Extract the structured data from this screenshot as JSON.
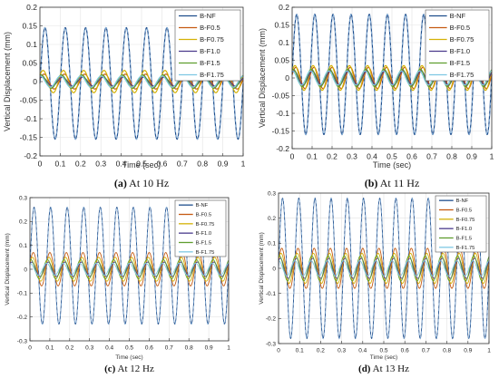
{
  "colors": {
    "B-NF": "#1f4e8c",
    "B-F0.5": "#c55a11",
    "B-F0.75": "#d4b106",
    "B-F1.0": "#4a3a8c",
    "B-F1.5": "#5f9e2f",
    "B-F1.75": "#7ec8e3"
  },
  "chart_data": [
    {
      "type": "line",
      "caption_label": "(a)",
      "caption_text": " At 10 Hz",
      "xlabel": "Time (sec)",
      "ylabel": "Vertical Displacement (mm)",
      "xlim": [
        0,
        1
      ],
      "ylim": [
        -0.2,
        0.2
      ],
      "x_ticks": [
        "0",
        "0.1",
        "0.2",
        "0.3",
        "0.4",
        "0.5",
        "0.6",
        "0.7",
        "0.8",
        "0.9",
        "1"
      ],
      "y_ticks": [
        "-0.2",
        "-0.15",
        "-0.1",
        "-0.05",
        "0",
        "0.05",
        "0.1",
        "0.15",
        "0.2"
      ],
      "grid": true,
      "legend": "top-right",
      "frequency_hz": 10,
      "series": [
        {
          "name": "B-NF",
          "amplitude": 0.15,
          "offset": -0.005
        },
        {
          "name": "B-F0.5",
          "amplitude": 0.02,
          "offset": 0.0
        },
        {
          "name": "B-F0.75",
          "amplitude": 0.03,
          "offset": 0.0
        },
        {
          "name": "B-F1.0",
          "amplitude": 0.012,
          "offset": 0.0
        },
        {
          "name": "B-F1.5",
          "amplitude": 0.018,
          "offset": 0.0
        },
        {
          "name": "B-F1.75",
          "amplitude": 0.015,
          "offset": 0.0
        }
      ]
    },
    {
      "type": "line",
      "caption_label": "(b)",
      "caption_text": " At 11 Hz",
      "xlabel": "Time (sec)",
      "ylabel": "Vertical Displacement (mm)",
      "xlim": [
        0,
        1
      ],
      "ylim": [
        -0.2,
        0.2
      ],
      "x_ticks": [
        "0",
        "0.1",
        "0.2",
        "0.3",
        "0.4",
        "0.5",
        "0.6",
        "0.7",
        "0.8",
        "0.9",
        "1"
      ],
      "y_ticks": [
        "-0.2",
        "-0.15",
        "-0.1",
        "-0.05",
        "0",
        "0.05",
        "0.1",
        "0.15",
        "0.2"
      ],
      "grid": true,
      "legend": "top-right",
      "frequency_hz": 11,
      "series": [
        {
          "name": "B-NF",
          "amplitude": 0.17,
          "offset": 0.01
        },
        {
          "name": "B-F0.5",
          "amplitude": 0.03,
          "offset": 0.0
        },
        {
          "name": "B-F0.75",
          "amplitude": 0.035,
          "offset": 0.0
        },
        {
          "name": "B-F1.0",
          "amplitude": 0.02,
          "offset": 0.0
        },
        {
          "name": "B-F1.5",
          "amplitude": 0.025,
          "offset": 0.0
        },
        {
          "name": "B-F1.75",
          "amplitude": 0.02,
          "offset": 0.0
        }
      ]
    },
    {
      "type": "line",
      "caption_label": "(c)",
      "caption_text": " At 12 Hz",
      "xlabel": "Time (sec)",
      "ylabel": "Vertical Displacement (mm)",
      "xlim": [
        0,
        1
      ],
      "ylim": [
        -0.3,
        0.3
      ],
      "x_ticks": [
        "0",
        "0.1",
        "0.2",
        "0.3",
        "0.4",
        "0.5",
        "0.6",
        "0.7",
        "0.8",
        "0.9",
        "1"
      ],
      "y_ticks": [
        "-0.3",
        "-0.2",
        "-0.1",
        "0",
        "0.1",
        "0.2",
        "0.3"
      ],
      "grid": true,
      "legend": "top-right",
      "frequency_hz": 12,
      "series": [
        {
          "name": "B-NF",
          "amplitude": 0.245,
          "offset": 0.015
        },
        {
          "name": "B-F0.5",
          "amplitude": 0.07,
          "offset": 0.0
        },
        {
          "name": "B-F0.75",
          "amplitude": 0.05,
          "offset": 0.0
        },
        {
          "name": "B-F1.0",
          "amplitude": 0.03,
          "offset": 0.0
        },
        {
          "name": "B-F1.5",
          "amplitude": 0.04,
          "offset": 0.0
        },
        {
          "name": "B-F1.75",
          "amplitude": 0.025,
          "offset": 0.0
        }
      ]
    },
    {
      "type": "line",
      "caption_label": "(d)",
      "caption_text": " At 13 Hz",
      "xlabel": "Time (sec)",
      "ylabel": "Vertical Displacement (mm)",
      "xlim": [
        0,
        1
      ],
      "ylim": [
        -0.3,
        0.3
      ],
      "x_ticks": [
        "0",
        "0.1",
        "0.2",
        "0.3",
        "0.4",
        "0.5",
        "0.6",
        "0.7",
        "0.8",
        "0.9",
        "1"
      ],
      "y_ticks": [
        "-0.3",
        "-0.2",
        "-0.1",
        "0",
        "0.1",
        "0.2",
        "0.3"
      ],
      "grid": true,
      "legend": "top-right",
      "frequency_hz": 13,
      "series": [
        {
          "name": "B-NF",
          "amplitude": 0.28,
          "offset": 0.0
        },
        {
          "name": "B-F0.5",
          "amplitude": 0.08,
          "offset": 0.0
        },
        {
          "name": "B-F0.75",
          "amplitude": 0.06,
          "offset": 0.0
        },
        {
          "name": "B-F1.0",
          "amplitude": 0.04,
          "offset": 0.0
        },
        {
          "name": "B-F1.5",
          "amplitude": 0.05,
          "offset": 0.0
        },
        {
          "name": "B-F1.75",
          "amplitude": 0.03,
          "offset": 0.0
        }
      ]
    }
  ]
}
